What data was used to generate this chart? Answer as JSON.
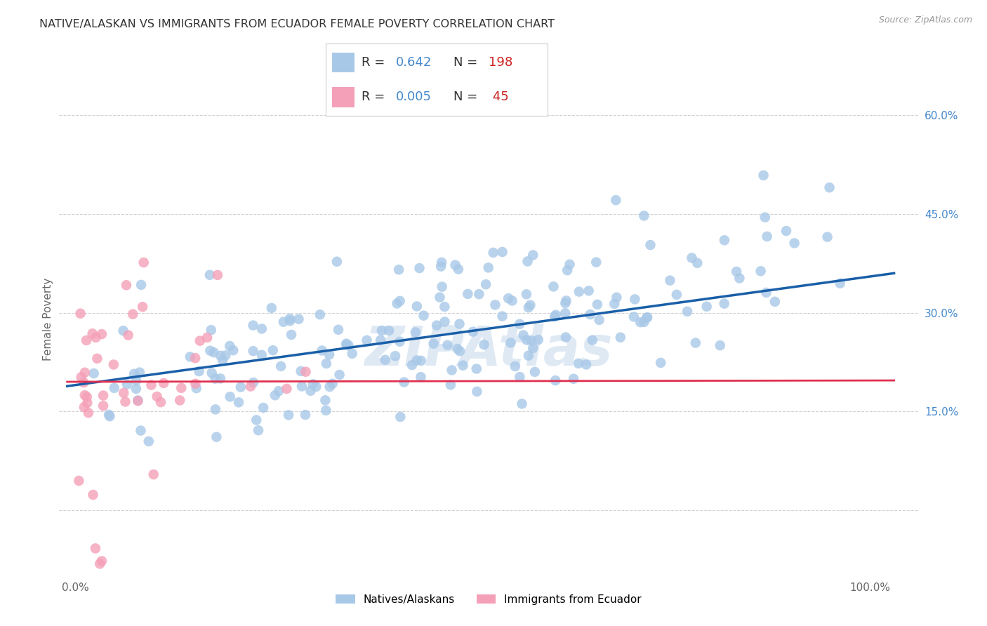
{
  "title": "NATIVE/ALASKAN VS IMMIGRANTS FROM ECUADOR FEMALE POVERTY CORRELATION CHART",
  "source": "Source: ZipAtlas.com",
  "ylabel": "Female Poverty",
  "x_tick_labels": [
    "0.0%",
    "100.0%"
  ],
  "y_ticks": [
    0.0,
    0.15,
    0.3,
    0.45,
    0.6
  ],
  "y_tick_labels": [
    "",
    "15.0%",
    "30.0%",
    "45.0%",
    "60.0%"
  ],
  "xlim": [
    -0.02,
    1.06
  ],
  "ylim": [
    -0.1,
    0.68
  ],
  "native_R": 0.642,
  "native_N": 198,
  "ecuador_R": 0.005,
  "ecuador_N": 45,
  "native_color": "#a8c8e8",
  "ecuador_color": "#f4a0b8",
  "native_line_color": "#1a5fa8",
  "ecuador_line_color": "#e03050",
  "legend_label_1": "Natives/Alaskans",
  "legend_label_2": "Immigrants from Ecuador",
  "watermark": "ZIPAtlas",
  "background_color": "#ffffff",
  "grid_color": "#cccccc",
  "title_color": "#333333",
  "axis_label_color": "#666666",
  "tick_label_color_right": "#4488cc",
  "native_seed": 42,
  "ecuador_seed": 99,
  "native_line_intercept": 0.19,
  "native_line_slope": 0.165,
  "ecuador_line_intercept": 0.195,
  "ecuador_line_slope": 0.002
}
